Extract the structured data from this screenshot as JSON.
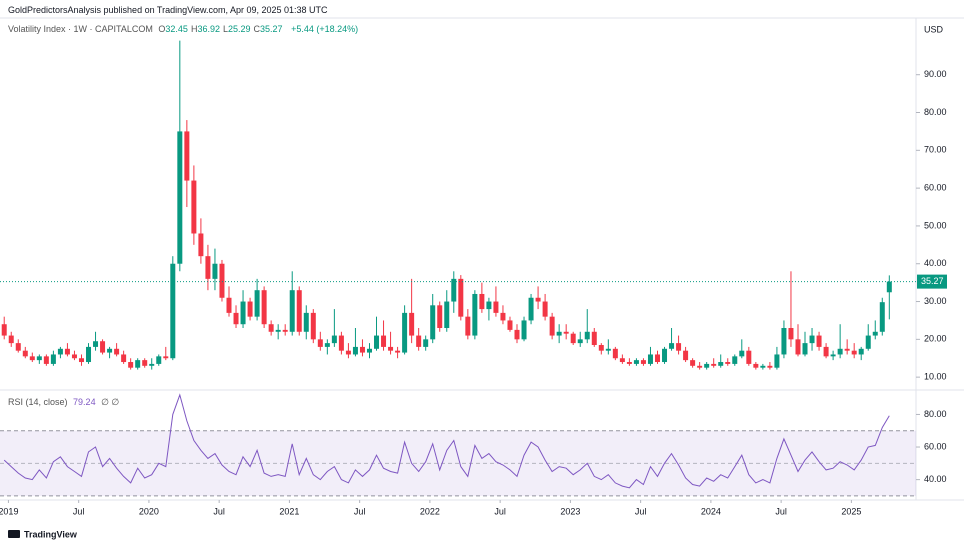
{
  "header": {
    "publisher": "GoldPredictorsAnalysis published on TradingView.com, Apr 09, 2025 01:38 UTC",
    "logo": "TradingView"
  },
  "chart_data": {
    "type": "candlestick",
    "symbol": "Volatility Index · 1W · CAPITALCOM",
    "ohlc_letters": [
      "O",
      "H",
      "L",
      "C"
    ],
    "ohlc": [
      32.45,
      36.92,
      25.29,
      35.27
    ],
    "change_label": "+5.44 (+18.24%)",
    "currency": "USD",
    "up_color": "#089981",
    "down_color": "#f23645",
    "grid": false,
    "xlim": [
      2018.94,
      2025.46
    ],
    "ylim": [
      6.6,
      105
    ],
    "yticks": [
      {
        "value": 10,
        "label": "10.00"
      },
      {
        "value": 20,
        "label": "20.00"
      },
      {
        "value": 30,
        "label": "30.00"
      },
      {
        "value": 40,
        "label": "40.00"
      },
      {
        "value": 50,
        "label": "50.00"
      },
      {
        "value": 60,
        "label": "60.00"
      },
      {
        "value": 70,
        "label": "70.00"
      },
      {
        "value": 80,
        "label": "80.00"
      },
      {
        "value": 90,
        "label": "90.00"
      }
    ],
    "xticks": [
      {
        "value": 2019,
        "label": "2019"
      },
      {
        "value": 2019.5,
        "label": "Jul"
      },
      {
        "value": 2020,
        "label": "2020"
      },
      {
        "value": 2020.5,
        "label": "Jul"
      },
      {
        "value": 2021,
        "label": "2021"
      },
      {
        "value": 2021.5,
        "label": "Jul"
      },
      {
        "value": 2022,
        "label": "2022"
      },
      {
        "value": 2022.5,
        "label": "Jul"
      },
      {
        "value": 2023,
        "label": "2023"
      },
      {
        "value": 2023.5,
        "label": "Jul"
      },
      {
        "value": 2024,
        "label": "2024"
      },
      {
        "value": 2024.5,
        "label": "Jul"
      },
      {
        "value": 2025,
        "label": "2025"
      }
    ],
    "x": [
      2018.97,
      2019.02,
      2019.07,
      2019.12,
      2019.17,
      2019.22,
      2019.27,
      2019.32,
      2019.37,
      2019.42,
      2019.47,
      2019.52,
      2019.57,
      2019.62,
      2019.67,
      2019.72,
      2019.77,
      2019.82,
      2019.87,
      2019.92,
      2019.97,
      2020.02,
      2020.07,
      2020.12,
      2020.17,
      2020.22,
      2020.27,
      2020.32,
      2020.37,
      2020.42,
      2020.47,
      2020.52,
      2020.57,
      2020.62,
      2020.67,
      2020.72,
      2020.77,
      2020.82,
      2020.87,
      2020.92,
      2020.97,
      2021.02,
      2021.07,
      2021.12,
      2021.17,
      2021.22,
      2021.27,
      2021.32,
      2021.37,
      2021.42,
      2021.47,
      2021.52,
      2021.57,
      2021.62,
      2021.67,
      2021.72,
      2021.77,
      2021.82,
      2021.87,
      2021.92,
      2021.97,
      2022.02,
      2022.07,
      2022.12,
      2022.17,
      2022.22,
      2022.27,
      2022.32,
      2022.37,
      2022.42,
      2022.47,
      2022.52,
      2022.57,
      2022.62,
      2022.67,
      2022.72,
      2022.77,
      2022.82,
      2022.87,
      2022.92,
      2022.97,
      2023.02,
      2023.07,
      2023.12,
      2023.17,
      2023.22,
      2023.27,
      2023.32,
      2023.37,
      2023.42,
      2023.47,
      2023.52,
      2023.57,
      2023.62,
      2023.67,
      2023.72,
      2023.77,
      2023.82,
      2023.87,
      2023.92,
      2023.97,
      2024.02,
      2024.07,
      2024.12,
      2024.17,
      2024.22,
      2024.27,
      2024.32,
      2024.37,
      2024.42,
      2024.47,
      2024.52,
      2024.57,
      2024.62,
      2024.67,
      2024.72,
      2024.77,
      2024.82,
      2024.87,
      2024.92,
      2024.97,
      2025.02,
      2025.07,
      2025.12,
      2025.17,
      2025.22,
      2025.27
    ],
    "candles": [
      [
        24,
        26,
        20,
        21
      ],
      [
        21,
        22,
        18,
        19
      ],
      [
        19,
        20,
        16.5,
        17
      ],
      [
        17,
        18,
        15,
        15.5
      ],
      [
        15.5,
        16.5,
        14,
        14.5
      ],
      [
        14.5,
        16,
        13.5,
        15.5
      ],
      [
        15.5,
        16,
        13,
        13.5
      ],
      [
        13.5,
        17,
        13,
        16
      ],
      [
        16,
        18,
        15,
        17.5
      ],
      [
        17.5,
        19,
        15.5,
        16
      ],
      [
        16,
        17,
        14.5,
        15
      ],
      [
        15,
        16,
        13,
        14
      ],
      [
        14,
        19,
        13.5,
        18
      ],
      [
        18,
        22,
        17,
        19.5
      ],
      [
        19.5,
        20,
        16,
        16.5
      ],
      [
        16.5,
        18,
        15,
        17.5
      ],
      [
        17.5,
        19,
        15.5,
        16
      ],
      [
        16,
        17,
        13.5,
        14
      ],
      [
        14,
        15,
        12,
        12.5
      ],
      [
        12.5,
        15,
        12,
        14.5
      ],
      [
        14.5,
        15,
        12.5,
        13
      ],
      [
        13,
        15,
        12,
        13.5
      ],
      [
        13.5,
        16,
        13,
        15.5
      ],
      [
        15.5,
        18,
        14.5,
        15
      ],
      [
        15,
        42,
        14.5,
        40
      ],
      [
        40,
        99,
        38,
        75
      ],
      [
        75,
        78,
        55,
        62
      ],
      [
        62,
        66,
        45,
        48
      ],
      [
        48,
        52,
        40,
        42
      ],
      [
        42,
        45,
        33,
        36
      ],
      [
        36,
        44,
        33,
        40
      ],
      [
        40,
        41,
        30,
        31
      ],
      [
        31,
        34,
        26,
        27
      ],
      [
        27,
        29,
        23,
        24
      ],
      [
        24,
        33,
        23,
        30
      ],
      [
        30,
        31,
        25,
        26
      ],
      [
        26,
        36,
        25,
        33
      ],
      [
        33,
        34,
        23,
        24
      ],
      [
        24,
        25,
        21,
        22
      ],
      [
        22,
        24,
        20,
        22.5
      ],
      [
        22.5,
        24,
        21,
        22
      ],
      [
        22,
        38,
        21,
        33
      ],
      [
        33,
        34,
        21,
        22
      ],
      [
        22,
        29,
        20,
        27
      ],
      [
        27,
        28,
        19,
        20
      ],
      [
        20,
        22,
        17,
        18
      ],
      [
        18,
        20,
        16,
        19
      ],
      [
        19,
        28,
        18,
        21
      ],
      [
        21,
        22,
        16,
        17
      ],
      [
        17,
        19,
        15,
        16
      ],
      [
        16,
        23,
        15.5,
        18
      ],
      [
        18,
        20,
        15.5,
        16.5
      ],
      [
        16.5,
        19,
        15,
        17.5
      ],
      [
        17.5,
        26,
        17,
        21
      ],
      [
        21,
        25,
        17,
        18
      ],
      [
        18,
        22,
        16,
        17
      ],
      [
        17,
        18,
        15,
        16.5
      ],
      [
        16.5,
        29,
        16,
        27
      ],
      [
        27,
        36,
        19,
        21
      ],
      [
        21,
        23,
        17,
        18
      ],
      [
        18,
        21,
        17,
        20
      ],
      [
        20,
        32,
        19,
        29
      ],
      [
        29,
        30,
        22,
        23
      ],
      [
        23,
        33,
        22,
        30
      ],
      [
        30,
        38,
        27,
        36
      ],
      [
        36,
        37,
        25,
        26
      ],
      [
        26,
        28,
        20,
        21
      ],
      [
        21,
        33,
        20,
        32
      ],
      [
        32,
        35,
        27,
        28
      ],
      [
        28,
        31,
        25,
        30
      ],
      [
        30,
        34,
        26,
        27
      ],
      [
        27,
        29,
        24,
        25
      ],
      [
        25,
        26,
        22,
        22.5
      ],
      [
        22.5,
        24,
        19,
        20
      ],
      [
        20,
        26,
        19.5,
        25
      ],
      [
        25,
        32,
        24,
        31
      ],
      [
        31,
        34,
        28,
        30
      ],
      [
        30,
        32,
        25,
        26
      ],
      [
        26,
        27,
        20,
        21
      ],
      [
        21,
        24,
        19,
        22
      ],
      [
        22,
        24,
        20,
        21.5
      ],
      [
        21.5,
        22,
        18.5,
        19
      ],
      [
        19,
        22,
        18,
        20
      ],
      [
        20,
        28,
        19,
        22
      ],
      [
        22,
        23,
        18,
        18.5
      ],
      [
        18.5,
        19,
        16,
        17
      ],
      [
        17,
        20,
        16,
        17.5
      ],
      [
        17.5,
        18,
        14.5,
        15
      ],
      [
        15,
        16,
        13.5,
        14
      ],
      [
        14,
        15,
        13,
        13.5
      ],
      [
        13.5,
        15,
        13,
        14.5
      ],
      [
        14.5,
        15,
        13,
        13.5
      ],
      [
        13.5,
        18,
        13,
        16
      ],
      [
        16,
        17,
        13.5,
        14
      ],
      [
        14,
        18,
        13.5,
        17.5
      ],
      [
        17.5,
        23,
        17,
        19
      ],
      [
        19,
        21,
        16,
        17
      ],
      [
        17,
        18,
        14,
        14.5
      ],
      [
        14.5,
        15,
        12.5,
        13
      ],
      [
        13,
        14,
        12,
        12.5
      ],
      [
        12.5,
        14,
        12,
        13.5
      ],
      [
        13.5,
        15,
        12.5,
        13
      ],
      [
        13,
        16,
        12.5,
        14
      ],
      [
        14,
        15,
        13,
        13.5
      ],
      [
        13.5,
        16,
        13,
        15.5
      ],
      [
        15.5,
        20,
        15,
        17
      ],
      [
        17,
        18,
        13,
        13.5
      ],
      [
        13.5,
        14,
        12,
        12.5
      ],
      [
        12.5,
        13.5,
        12,
        13
      ],
      [
        13,
        14,
        12,
        12.5
      ],
      [
        12.5,
        18,
        12,
        16
      ],
      [
        16,
        25,
        15,
        23
      ],
      [
        23,
        38,
        18,
        20
      ],
      [
        20,
        24,
        15.5,
        16
      ],
      [
        16,
        22,
        15.5,
        19
      ],
      [
        19,
        23,
        17,
        21
      ],
      [
        21,
        22,
        17,
        18
      ],
      [
        18,
        19,
        15,
        15.5
      ],
      [
        15.5,
        17,
        14.5,
        16
      ],
      [
        16,
        24,
        15,
        17.5
      ],
      [
        17.5,
        20,
        16,
        17
      ],
      [
        17,
        19,
        15,
        16
      ],
      [
        16,
        18,
        14.5,
        17.5
      ],
      [
        17.5,
        24,
        17,
        21
      ],
      [
        21,
        25,
        20,
        22
      ],
      [
        22,
        31,
        21,
        29.83
      ],
      [
        32.45,
        36.92,
        25.29,
        35.27
      ]
    ],
    "rsi": {
      "title": "RSI (14, close)",
      "icons": "∅ ∅",
      "color": "#7e57c2",
      "ylim": [
        27.5,
        95
      ],
      "yticks": [
        {
          "value": 40,
          "label": "40.00"
        },
        {
          "value": 60,
          "label": "60.00"
        },
        {
          "value": 80,
          "label": "80.00"
        }
      ],
      "bands": [
        30,
        50,
        70
      ],
      "values": [
        52,
        48,
        44,
        41,
        40,
        46,
        41,
        51,
        54,
        48,
        45,
        42,
        57,
        60,
        48,
        53,
        47,
        42,
        38,
        47,
        41,
        43,
        50,
        48,
        80,
        92,
        76,
        64,
        58,
        53,
        56,
        49,
        45,
        43,
        54,
        48,
        58,
        44,
        42,
        43,
        42,
        62,
        43,
        53,
        43,
        40,
        45,
        48,
        40,
        38,
        46,
        42,
        46,
        55,
        47,
        45,
        44,
        63,
        50,
        45,
        51,
        62,
        46,
        58,
        64,
        48,
        42,
        61,
        53,
        56,
        51,
        49,
        46,
        42,
        55,
        63,
        60,
        52,
        45,
        48,
        47,
        43,
        46,
        50,
        42,
        40,
        43,
        38,
        36,
        35,
        40,
        37,
        48,
        42,
        50,
        56,
        49,
        41,
        37,
        36,
        41,
        39,
        43,
        41,
        48,
        55,
        43,
        38,
        40,
        38,
        53,
        65,
        55,
        45,
        52,
        57,
        51,
        46,
        47,
        51,
        49,
        46,
        52,
        60,
        61,
        72,
        79.24
      ]
    }
  }
}
